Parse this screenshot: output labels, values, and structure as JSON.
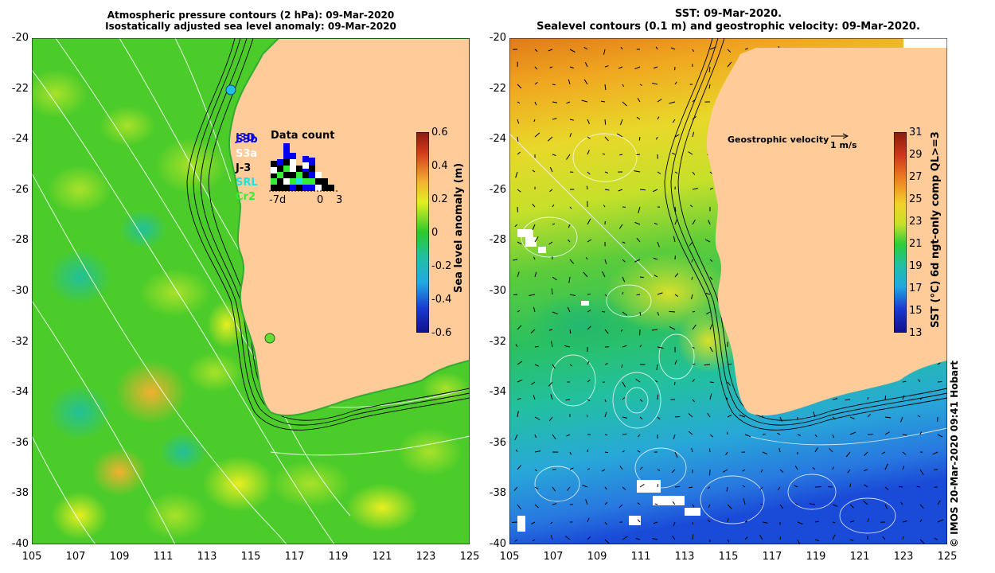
{
  "left_panel": {
    "title_line1": "Atmospheric pressure contours (2 hPa): 09-Mar-2020",
    "title_line2": "Isostatically adjusted sea level anomaly: 09-Mar-2020",
    "colorbar": {
      "title": "Sea level anomaly (m)",
      "ticks": [
        "0.6",
        "0.4",
        "0.2",
        "0",
        "-0.2",
        "-0.4",
        "-0.6"
      ]
    },
    "data_count": {
      "title": "Data count",
      "satellites": [
        {
          "name": "S3b",
          "color": "#0000ee"
        },
        {
          "name": "S3a",
          "color": "#ffffff"
        },
        {
          "name": "J-3",
          "color": "#000000"
        },
        {
          "name": "SRL",
          "color": "#22e0e0"
        },
        {
          "name": "Cr2",
          "color": "#33ee33"
        }
      ],
      "overlay_label": "J3D",
      "x_ticks": [
        "-7d",
        "0",
        "3"
      ]
    }
  },
  "right_panel": {
    "title_line1": "SST: 09-Mar-2020.",
    "title_line2": "Sealevel contours (0.1 m) and geostrophic velocity: 09-Mar-2020.",
    "velocity_legend": {
      "label": "Geostrophic velocity",
      "scale": "1 m/s"
    },
    "colorbar": {
      "title": "SST (°C) 6d ngt-only comp QL>=3",
      "ticks": [
        "31",
        "29",
        "27",
        "25",
        "23",
        "21",
        "19",
        "17",
        "15",
        "13"
      ]
    }
  },
  "axes": {
    "y_ticks": [
      "-20",
      "-22",
      "-24",
      "-26",
      "-28",
      "-30",
      "-32",
      "-34",
      "-36",
      "-38",
      "-40"
    ],
    "x_ticks": [
      "105",
      "107",
      "109",
      "111",
      "113",
      "115",
      "117",
      "119",
      "121",
      "123",
      "125"
    ]
  },
  "footer": "© IMOS 20-Mar-2020 09:41 Hobart",
  "colors": {
    "land": "#ffcc99",
    "slope_contour": "#000000",
    "pressure_contour": "#ffffff"
  }
}
